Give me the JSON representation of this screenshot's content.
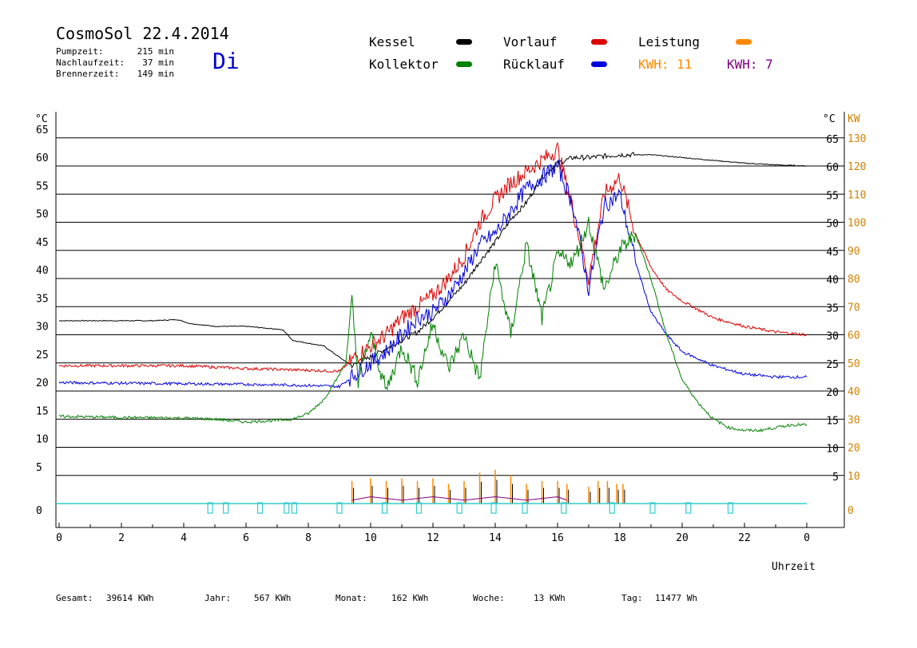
{
  "header": {
    "title": "CosmoSol 22.4.2014",
    "day": "Di",
    "pump_label": "Pumpzeit:",
    "pump_value": "215 min",
    "nachlauf_label": "Nachlaufzeit:",
    "nachlauf_value": "37 min",
    "brenner_label": "Brennerzeit:",
    "brenner_value": "149 min"
  },
  "legend": {
    "kessel": "Kessel",
    "kollektor": "Kollektor",
    "vorlauf": "Vorlauf",
    "ruecklauf": "Rücklauf",
    "leistung": "Leistung",
    "kwh_orange": "KWH: 11",
    "kwh_purple": "KWH: 7"
  },
  "footer": {
    "gesamt_label": "Gesamt:",
    "gesamt_value": "39614 KWh",
    "jahr_label": "Jahr:",
    "jahr_value": "567 KWh",
    "monat_label": "Monat:",
    "monat_value": "162 KWh",
    "woche_label": "Woche:",
    "woche_value": "13 KWh",
    "tag_label": "Tag:",
    "tag_value": "11477 Wh"
  },
  "colors": {
    "kessel": "#000000",
    "kollektor": "#008000",
    "vorlauf": "#dd0000",
    "ruecklauf": "#0000dd",
    "leistung": "#ff8800",
    "kwh_purple": "#800080",
    "pump": "#33cccc",
    "kw_axis": "#d08000"
  },
  "chart_data": {
    "type": "line",
    "xlabel": "Uhrzeit",
    "ylabel_left": "°C",
    "ylabel_right_c": "°C",
    "ylabel_right_kw": "KW",
    "xlim": [
      0,
      24
    ],
    "ylim": [
      -4,
      66
    ],
    "x_ticks": [
      "0",
      "2",
      "4",
      "6",
      "8",
      "10",
      "12",
      "14",
      "16",
      "18",
      "20",
      "22",
      "0"
    ],
    "y_ticks_left": [
      "65",
      "60",
      "55",
      "50",
      "45",
      "40",
      "35",
      "30",
      "25",
      "20",
      "15",
      "10",
      "5",
      "0"
    ],
    "y_ticks_right_c": [
      "65",
      "60",
      "55",
      "50",
      "45",
      "40",
      "35",
      "30",
      "25",
      "20",
      "15",
      "10",
      "5"
    ],
    "y_ticks_right_kw": [
      "130",
      "120",
      "110",
      "100",
      "90",
      "80",
      "70",
      "60",
      "50",
      "40",
      "30",
      "20",
      "10",
      "0"
    ],
    "series": [
      {
        "name": "Kessel",
        "color": "#000000",
        "x": [
          0,
          2,
          3,
          3.8,
          4.2,
          5,
          6,
          7,
          7.2,
          7.5,
          8,
          8.5,
          9,
          9.4,
          9.8,
          10.5,
          11,
          11.5,
          12,
          12.5,
          13,
          13.5,
          14,
          14.5,
          15,
          15.5,
          16,
          16.5,
          17,
          18,
          19,
          20,
          21,
          22,
          23,
          24
        ],
        "y": [
          32.5,
          32.5,
          32.5,
          32.7,
          32,
          31.5,
          31.5,
          31,
          30.8,
          29,
          28.5,
          28,
          26,
          24.5,
          25.5,
          27.5,
          29,
          30.5,
          33,
          36,
          39,
          43,
          46.5,
          50.5,
          53.5,
          58,
          60.5,
          61.5,
          61.5,
          62,
          62,
          61.5,
          61,
          60.5,
          60.2,
          60
        ]
      },
      {
        "name": "Vorlauf",
        "color": "#dd0000",
        "x": [
          0,
          2,
          4,
          6,
          8,
          9,
          9.5,
          10,
          10.5,
          11,
          11.5,
          12,
          12.5,
          13,
          13.5,
          14,
          14.5,
          15,
          15.5,
          16,
          16.5,
          17,
          17.5,
          18,
          18.5,
          19,
          19.5,
          20,
          21,
          22,
          23,
          24
        ],
        "y": [
          24.5,
          24.5,
          24.5,
          24,
          23.7,
          23.5,
          26,
          28,
          30,
          33,
          35,
          37,
          40,
          44,
          50,
          54,
          57,
          59,
          61,
          63,
          52,
          40,
          55,
          58,
          48,
          42,
          38,
          36,
          33,
          31.5,
          30.5,
          30
        ]
      },
      {
        "name": "Rücklauf",
        "color": "#0000dd",
        "x": [
          0,
          2,
          4,
          6,
          8,
          9,
          9.5,
          10,
          10.5,
          11,
          11.5,
          12,
          12.5,
          13,
          13.5,
          14,
          14.5,
          15,
          15.5,
          16,
          16.5,
          17,
          17.5,
          18,
          18.5,
          19,
          19.5,
          20,
          21,
          22,
          23,
          24
        ],
        "y": [
          21.5,
          21.4,
          21.3,
          21.2,
          21,
          20.8,
          23,
          25,
          27,
          30,
          33,
          34,
          37,
          41,
          46,
          48,
          52,
          56,
          58,
          60,
          53,
          38,
          53,
          55,
          43,
          34,
          30,
          27,
          24.5,
          23,
          22.5,
          22.5
        ]
      },
      {
        "name": "Kollektor",
        "color": "#008000",
        "x": [
          0,
          2,
          4,
          5,
          6,
          7,
          7.5,
          8,
          8.5,
          8.9,
          9.2,
          9.4,
          9.6,
          10,
          10.5,
          11,
          11.5,
          12,
          12.5,
          13,
          13.5,
          14,
          14.5,
          15,
          15.5,
          16,
          16.5,
          17,
          17.5,
          18,
          18.5,
          19,
          19.5,
          20,
          20.5,
          21,
          21.5,
          22,
          22.5,
          23,
          23.5,
          24
        ],
        "y": [
          15.5,
          15.3,
          15.2,
          15,
          14.5,
          14.8,
          15,
          16,
          18.5,
          22,
          25,
          36,
          22,
          30,
          20,
          28,
          22,
          32,
          24,
          30,
          22,
          43,
          30,
          46,
          33,
          44,
          43,
          50,
          38,
          45,
          48,
          40,
          30,
          22,
          18,
          15,
          13.5,
          13,
          13,
          13.5,
          14,
          14
        ]
      }
    ],
    "leistung_x": [
      9.4,
      10,
      10.5,
      11,
      11.5,
      12,
      12.5,
      13,
      13.5,
      14,
      14.5,
      15,
      15.5,
      16,
      16.3,
      17,
      17.3,
      17.6,
      17.9,
      18.1
    ],
    "leistung_kw": [
      8,
      9,
      8,
      9,
      8,
      9,
      7,
      8,
      11,
      12,
      10,
      7,
      8,
      8,
      7,
      6,
      8,
      8,
      7,
      7
    ],
    "pump_markers_x": [
      4.85,
      5.35,
      6.45,
      7.3,
      7.55,
      9.0,
      10.45,
      11.55,
      12.85,
      13.95,
      14.95,
      16.2,
      17.75,
      19.05,
      20.2,
      21.55
    ]
  }
}
